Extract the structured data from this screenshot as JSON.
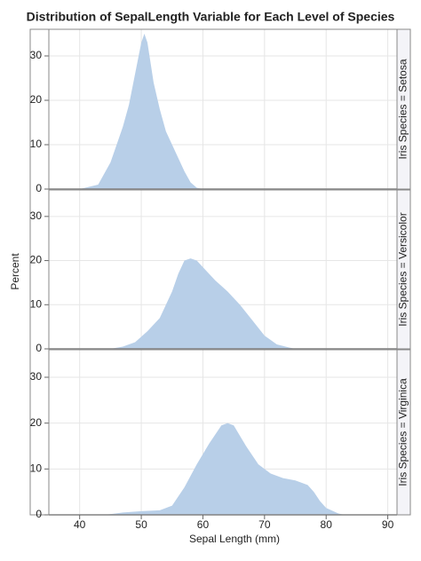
{
  "chart_data": {
    "type": "area",
    "title": "Distribution of SepalLength Variable for Each Level of Species",
    "x_label": "Sepal Length (mm)",
    "y_label": "Percent",
    "xlim": [
      35,
      91.5
    ],
    "xticks": [
      40,
      50,
      60,
      70,
      80,
      90
    ],
    "ylim": [
      0,
      36
    ],
    "yticks": [
      0,
      10,
      20,
      30
    ],
    "grid": true,
    "color": "#b8cfe8",
    "panels": [
      {
        "name": "Iris Species = Setosa",
        "x": [
          40,
          43,
          45,
          47,
          48,
          49,
          50,
          50.5,
          51,
          52,
          53,
          54,
          55,
          56,
          57,
          58,
          59,
          60
        ],
        "values": [
          0,
          1,
          6,
          14,
          19,
          26,
          33,
          35,
          33,
          24,
          18,
          13,
          10,
          7,
          4,
          1.5,
          0.3,
          0
        ]
      },
      {
        "name": "Iris Species = Versicolor",
        "x": [
          45,
          47,
          49,
          51,
          53,
          55,
          56,
          57,
          58,
          59,
          60,
          62,
          64,
          66,
          68,
          70,
          72,
          74,
          75
        ],
        "values": [
          0,
          0.5,
          1.5,
          4,
          7,
          13,
          17,
          20,
          20.5,
          20,
          18.5,
          15.5,
          13,
          10,
          6.5,
          3,
          1,
          0.3,
          0
        ]
      },
      {
        "name": "Iris Species = Virginica",
        "x": [
          44,
          47,
          50,
          53,
          55,
          57,
          59,
          61,
          63,
          64,
          65,
          67,
          69,
          71,
          73,
          75,
          77,
          78,
          79,
          80,
          82,
          83
        ],
        "values": [
          0,
          0.5,
          0.8,
          1,
          2,
          6,
          11,
          15.5,
          19.5,
          20,
          19.5,
          15,
          11,
          9,
          8,
          7.5,
          6.5,
          5,
          3,
          1.5,
          0.3,
          0
        ]
      }
    ]
  }
}
